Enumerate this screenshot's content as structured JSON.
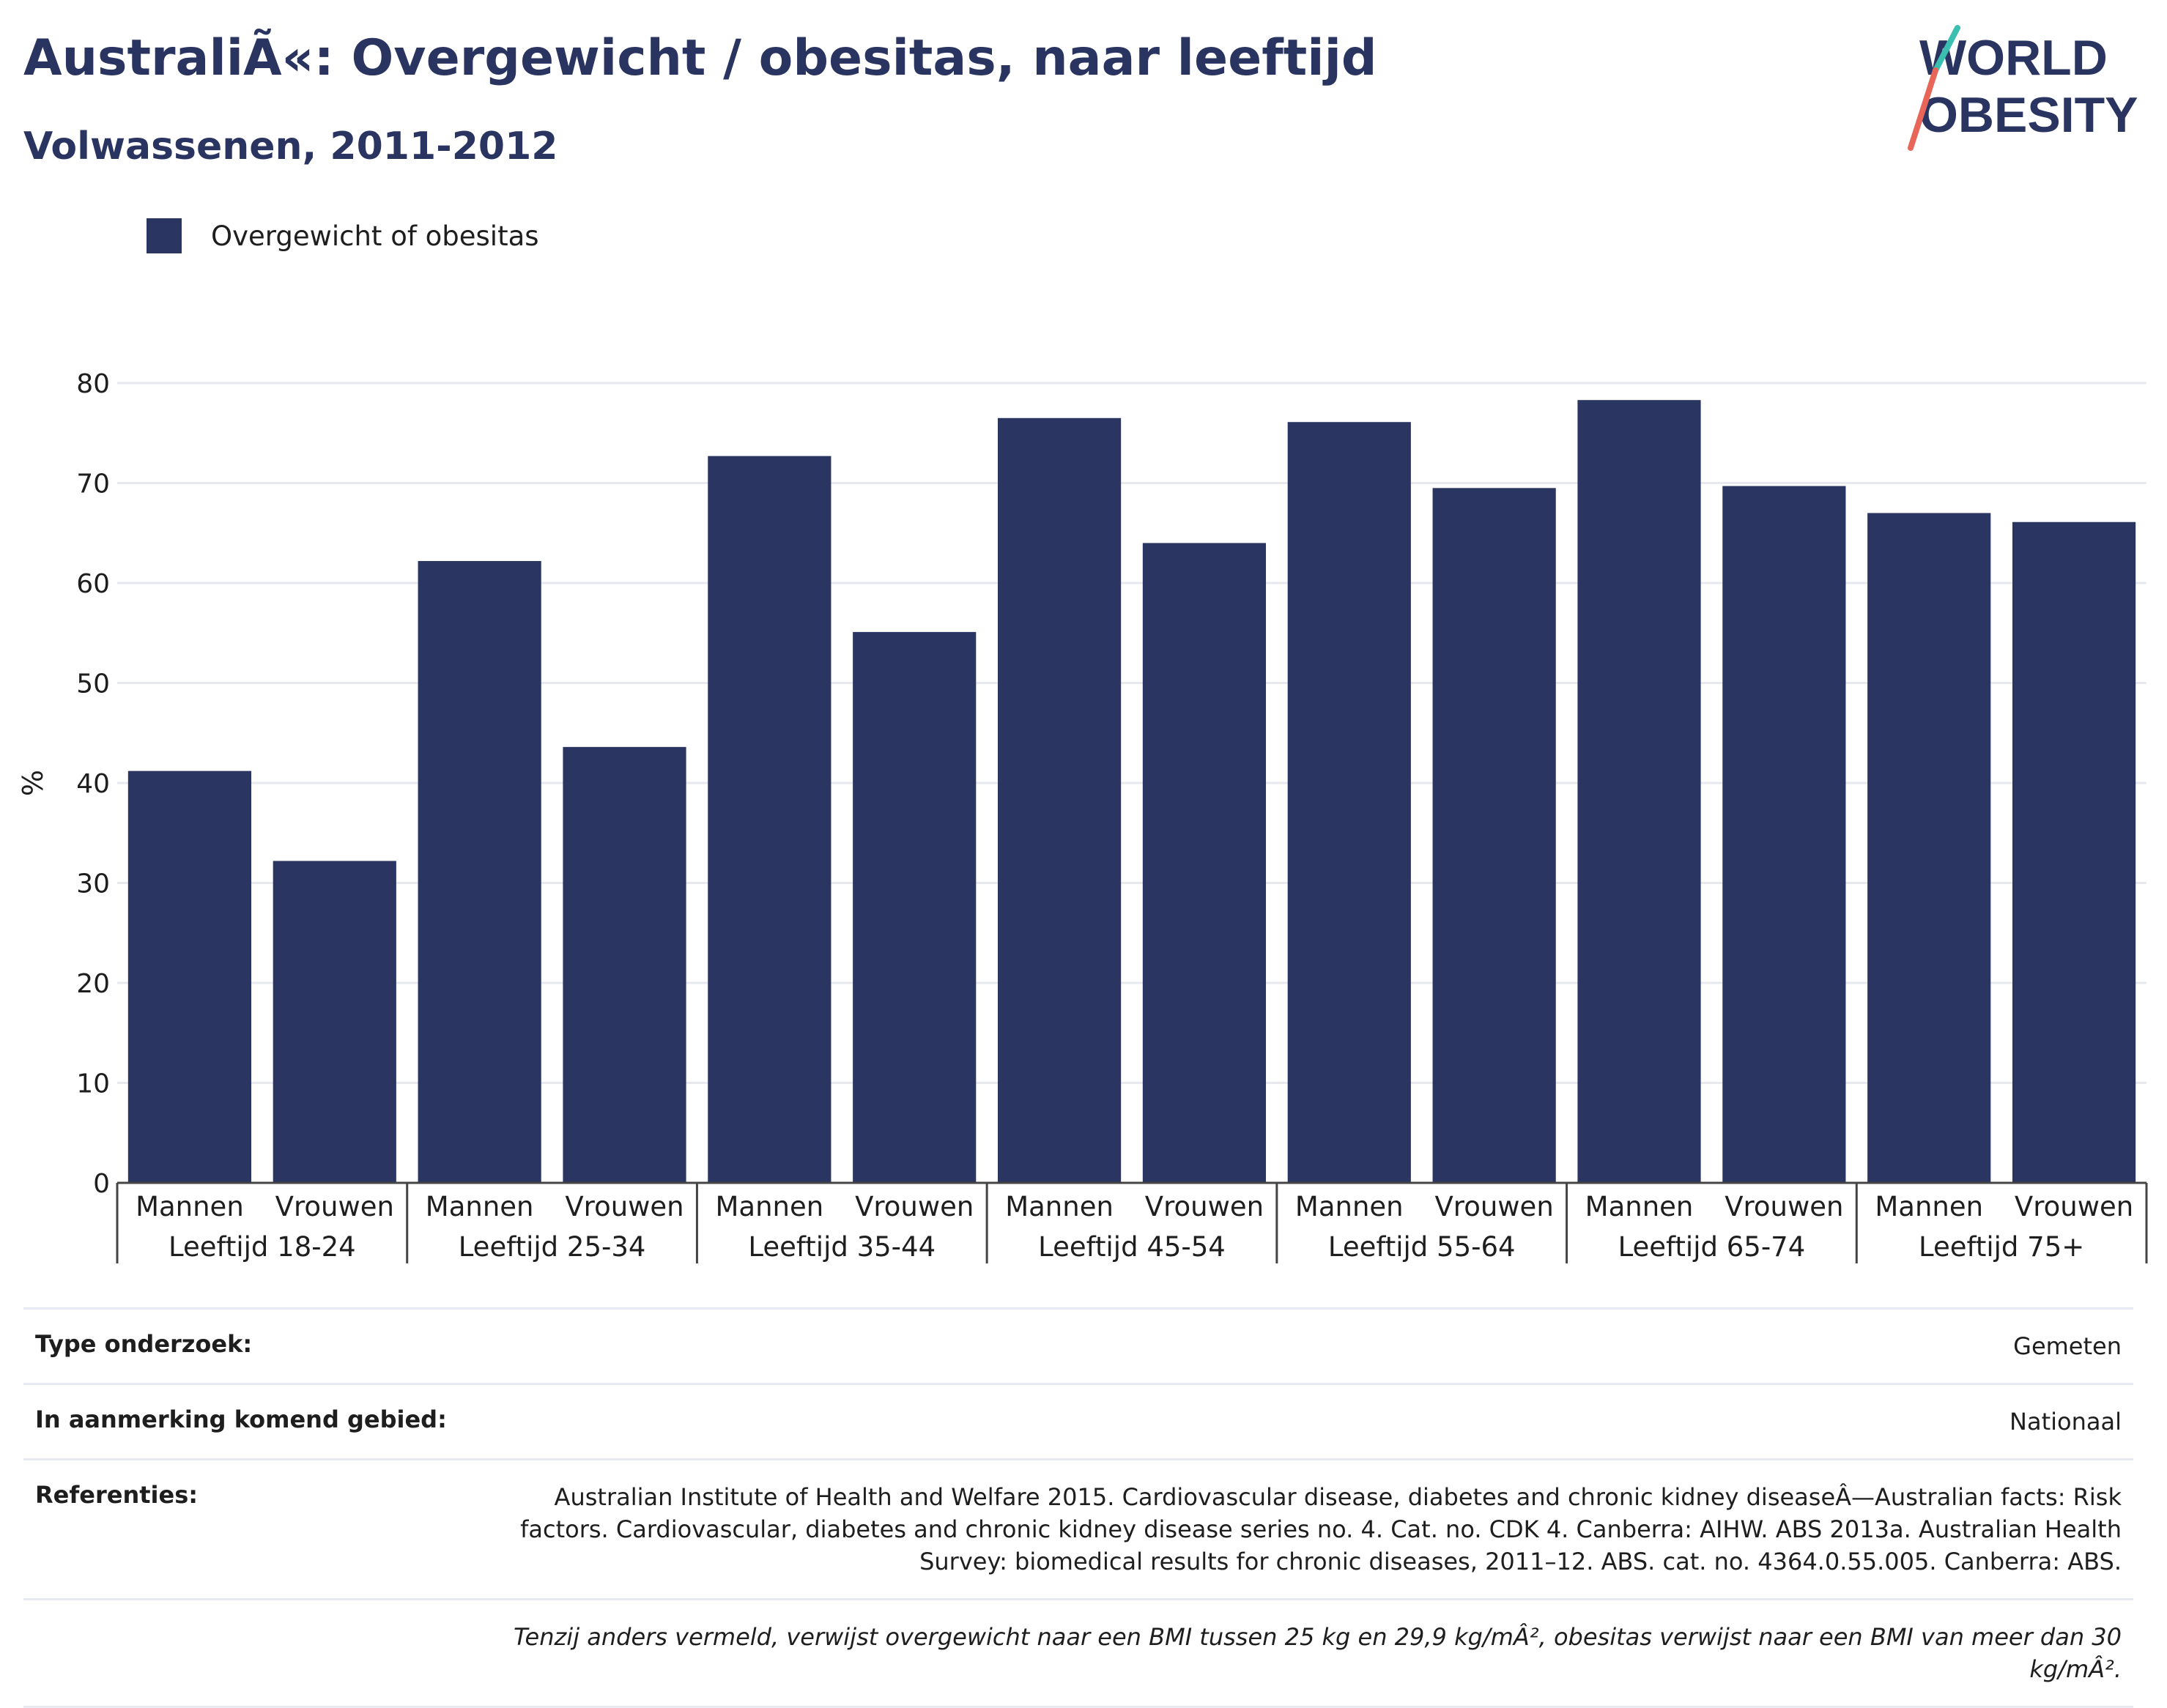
{
  "header": {
    "title": "AustraliÃ«: Overgewicht / obesitas, naar leeftijd",
    "subtitle": "Volwassenen, 2011-2012"
  },
  "logo": {
    "line1": "WORLD",
    "line2": "OBESITY"
  },
  "legend": {
    "label": "Overgewicht of obesitas",
    "color": "#2a3562"
  },
  "chart_data": {
    "type": "bar",
    "ylabel": "%",
    "ylim": [
      0,
      80
    ],
    "yticks": [
      0,
      10,
      20,
      30,
      40,
      50,
      60,
      70,
      80
    ],
    "groups": [
      "Leeftijd 18-24",
      "Leeftijd 25-34",
      "Leeftijd 35-44",
      "Leeftijd 45-54",
      "Leeftijd 55-64",
      "Leeftijd 65-74",
      "Leeftijd 75+"
    ],
    "subcategories": [
      "Mannen",
      "Vrouwen"
    ],
    "series": [
      {
        "name": "Overgewicht of obesitas",
        "values": [
          41.2,
          32.2,
          62.2,
          43.6,
          72.7,
          55.1,
          76.5,
          64.0,
          76.1,
          69.5,
          78.3,
          69.7,
          67.0,
          66.1
        ]
      }
    ],
    "grid": true,
    "legend": "top-left"
  },
  "footer": {
    "rows": [
      {
        "key": "Type onderzoek:",
        "value": "Gemeten"
      },
      {
        "key": "In aanmerking komend gebied:",
        "value": "Nationaal"
      },
      {
        "key": "Referenties:",
        "value": "Australian Institute of Health and Welfare 2015. Cardiovascular disease, diabetes and chronic kidney diseaseÂ—Australian facts: Risk factors. Cardiovascular, diabetes and chronic kidney disease series no. 4. Cat. no. CDK 4. Canberra: AIHW. ABS 2013a. Australian Health Survey: biomedical results for chronic diseases, 2011–12. ABS. cat. no. 4364.0.55.005. Canberra: ABS."
      }
    ],
    "note": "Tenzij anders vermeld, verwijst overgewicht naar een BMI tussen 25 kg en 29,9 kg/mÂ², obesitas verwijst naar een BMI van meer dan 30 kg/mÂ²."
  }
}
